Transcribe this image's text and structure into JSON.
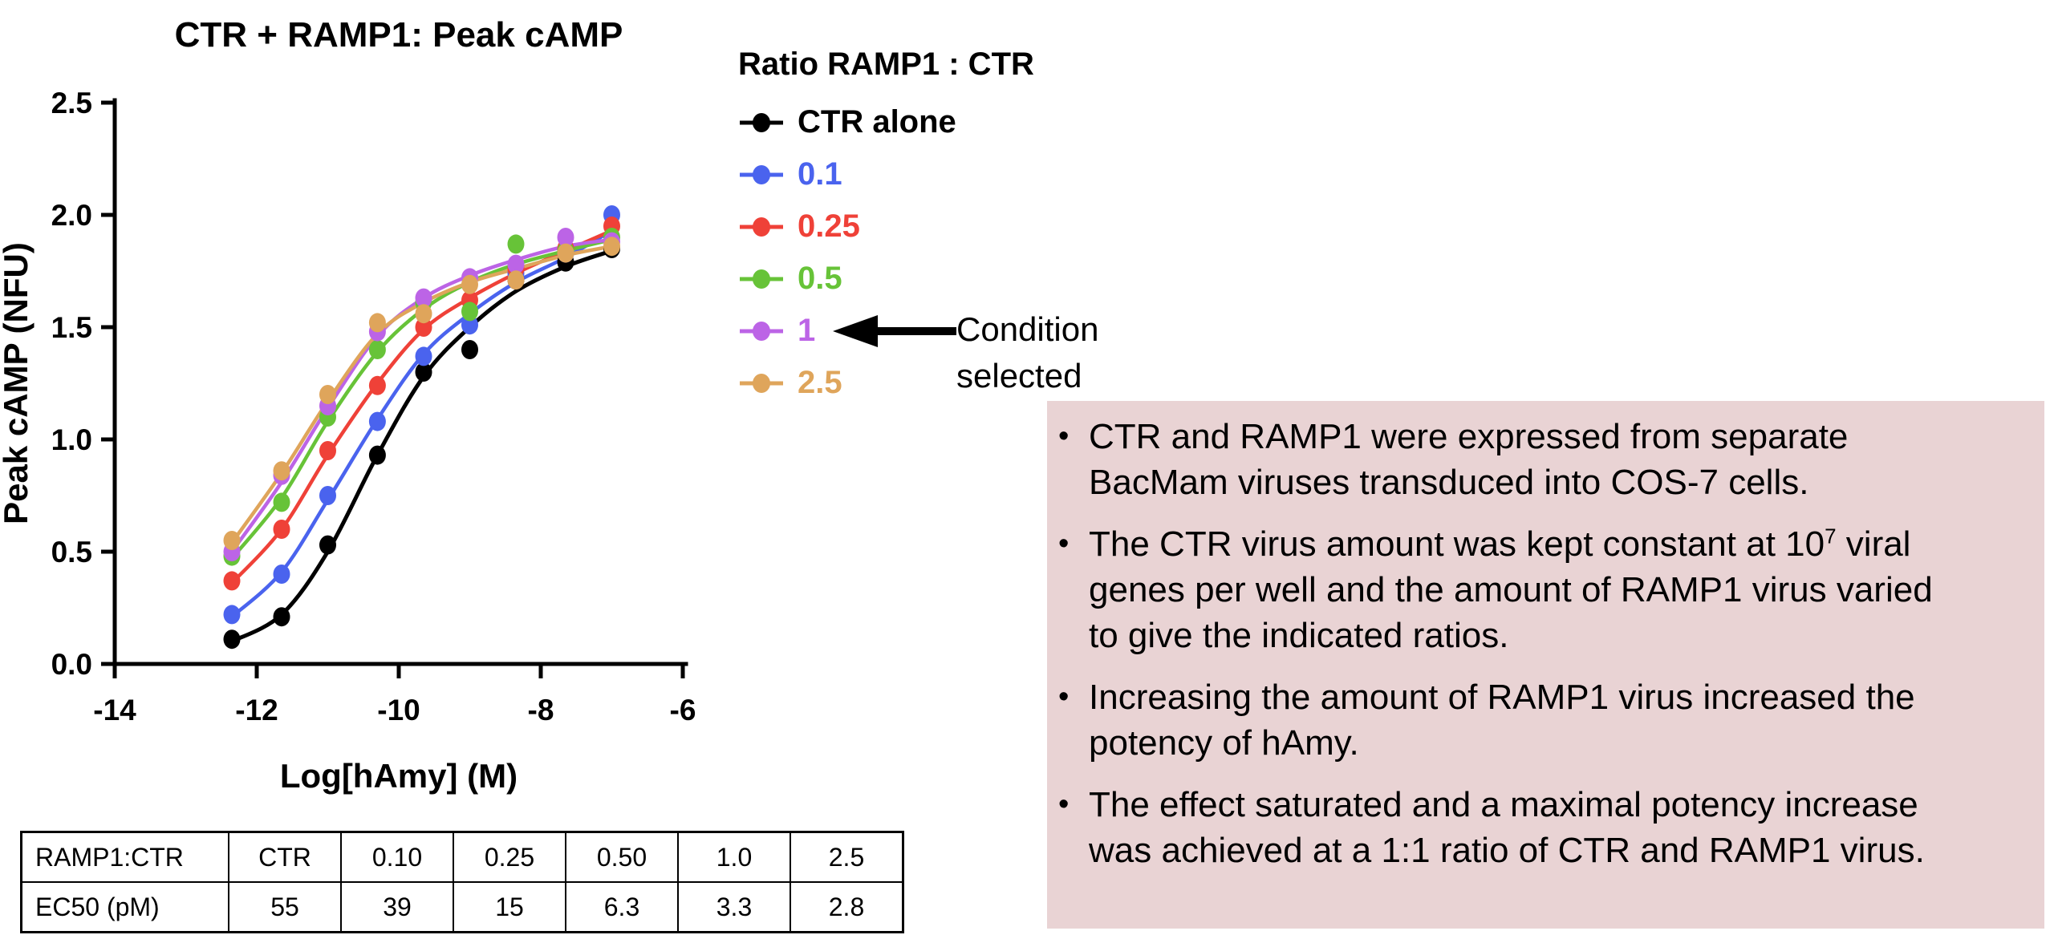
{
  "chart_data": {
    "type": "scatter",
    "title": "CTR + RAMP1: Peak cAMP",
    "xlabel": "Log[hAmy] (M)",
    "ylabel": "Peak cAMP (NFU)",
    "xlim": [
      -14,
      -6
    ],
    "ylim": [
      0,
      2.5
    ],
    "x_ticks": [
      "-14",
      "-12",
      "-10",
      "-8",
      "-6"
    ],
    "x_tick_values": [
      -14,
      -12,
      -10,
      -8,
      -6
    ],
    "y_ticks": [
      "0.0",
      "0.5",
      "1.0",
      "1.5",
      "2.0",
      "2.5"
    ],
    "y_tick_values": [
      0,
      0.5,
      1.0,
      1.5,
      2.0,
      2.5
    ],
    "grid": false,
    "legend_title": "Ratio RAMP1 : CTR",
    "legend_position": "right",
    "x": [
      -12.35,
      -11.65,
      -11.0,
      -10.3,
      -9.65,
      -9.0,
      -8.35,
      -7.65,
      -7.0
    ],
    "series": [
      {
        "name": "CTR alone",
        "color": "#000000",
        "values": [
          0.11,
          0.21,
          0.53,
          0.93,
          1.3,
          1.4,
          1.71,
          1.79,
          1.85
        ],
        "curve": [
          0.1,
          0.22,
          0.5,
          0.93,
          1.28,
          1.5,
          1.66,
          1.77,
          1.84
        ]
      },
      {
        "name": "0.1",
        "color": "#4a63ee",
        "values": [
          0.22,
          0.4,
          0.75,
          1.08,
          1.37,
          1.51,
          1.74,
          1.83,
          2.0
        ],
        "curve": [
          0.21,
          0.41,
          0.73,
          1.09,
          1.38,
          1.56,
          1.7,
          1.81,
          1.93
        ]
      },
      {
        "name": "0.25",
        "color": "#ef4138",
        "values": [
          0.37,
          0.6,
          0.95,
          1.24,
          1.5,
          1.62,
          1.76,
          1.85,
          1.95
        ],
        "curve": [
          0.36,
          0.6,
          0.93,
          1.25,
          1.49,
          1.63,
          1.74,
          1.84,
          1.93
        ]
      },
      {
        "name": "0.5",
        "color": "#67c338",
        "values": [
          0.48,
          0.72,
          1.1,
          1.4,
          1.61,
          1.57,
          1.87,
          1.84,
          1.9
        ],
        "curve": [
          0.47,
          0.74,
          1.08,
          1.39,
          1.58,
          1.7,
          1.78,
          1.84,
          1.89
        ]
      },
      {
        "name": "1",
        "color": "#bc64e6",
        "values": [
          0.5,
          0.84,
          1.15,
          1.48,
          1.63,
          1.72,
          1.78,
          1.9,
          1.88
        ],
        "curve": [
          0.5,
          0.81,
          1.14,
          1.46,
          1.63,
          1.73,
          1.8,
          1.86,
          1.89
        ]
      },
      {
        "name": "2.5",
        "color": "#dfa55b",
        "values": [
          0.55,
          0.86,
          1.2,
          1.52,
          1.56,
          1.69,
          1.71,
          1.83,
          1.86
        ],
        "curve": [
          0.54,
          0.85,
          1.17,
          1.47,
          1.61,
          1.7,
          1.76,
          1.82,
          1.86
        ]
      }
    ],
    "ec50_table": {
      "rows": [
        [
          "RAMP1:CTR",
          "CTR",
          "0.10",
          "0.25",
          "0.50",
          "1.0",
          "2.5"
        ],
        [
          "EC50 (pM)",
          "55",
          "39",
          "15",
          "6.3",
          "3.3",
          "2.8"
        ]
      ]
    }
  },
  "annotation": {
    "label": "Condition selected"
  },
  "notes": {
    "background": "#e9d3d4",
    "bullets": [
      "CTR and RAMP1 were expressed from separate BacMam viruses transduced into COS-7 cells.",
      "The CTR virus amount was kept constant at 10^{7} viral genes per well and the amount of RAMP1 virus varied to give the indicated ratios.",
      "Increasing the amount of RAMP1 virus increased the potency of hAmy.",
      "The effect saturated and a maximal potency increase was achieved at a 1:1 ratio of CTR and RAMP1 virus."
    ]
  }
}
